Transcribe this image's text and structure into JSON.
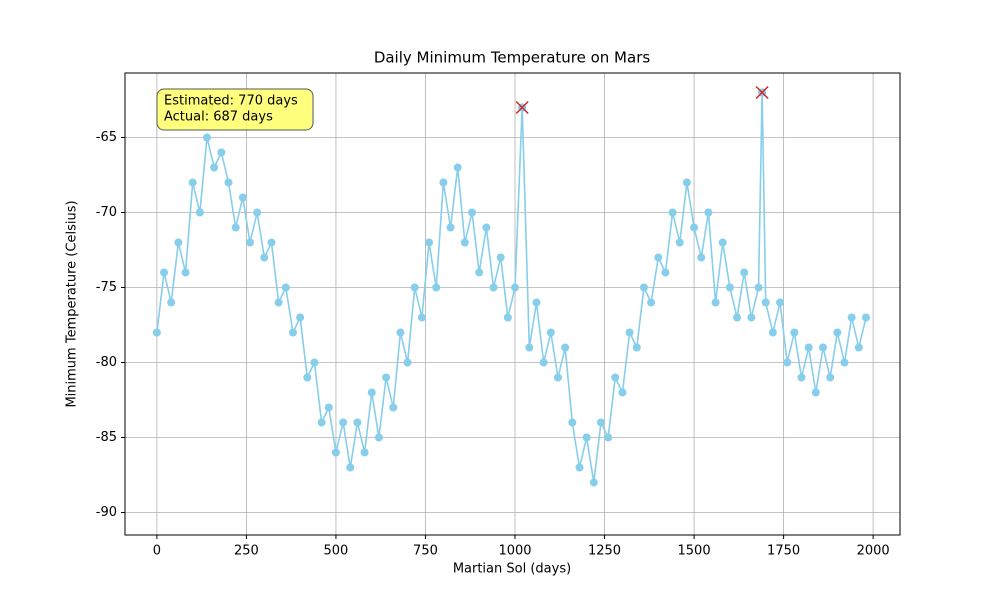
{
  "chart_data": {
    "type": "line",
    "title": "Daily Minimum Temperature on Mars",
    "x_label": "Martian Sol (days)",
    "y_label": "Minimum Temperature (Celsius)",
    "xlim": [
      -89,
      2075
    ],
    "ylim": [
      -91.5,
      -60.7
    ],
    "xticks": [
      0,
      250,
      500,
      750,
      1000,
      1250,
      1500,
      1750,
      2000
    ],
    "yticks": [
      -90,
      -85,
      -80,
      -75,
      -70,
      -65
    ],
    "grid": true,
    "series": [
      {
        "color": "#87ceeb",
        "marker": "o",
        "x": [
          0,
          20,
          40,
          60,
          80,
          100,
          120,
          140,
          160,
          180,
          200,
          220,
          240,
          260,
          280,
          300,
          320,
          340,
          360,
          380,
          400,
          420,
          440,
          460,
          480,
          500,
          520,
          540,
          560,
          580,
          600,
          620,
          640,
          660,
          680,
          700,
          720,
          740,
          760,
          780,
          800,
          820,
          840,
          860,
          880,
          900,
          920,
          940,
          960,
          980,
          1000,
          1020,
          1040,
          1060,
          1080,
          1100,
          1120,
          1140,
          1160,
          1180,
          1200,
          1220,
          1240,
          1260,
          1280,
          1300,
          1320,
          1340,
          1360,
          1380,
          1400,
          1420,
          1440,
          1460,
          1480,
          1500,
          1520,
          1540,
          1560,
          1580,
          1600,
          1620,
          1640,
          1660,
          1680,
          1690,
          1700,
          1720,
          1740,
          1760,
          1780,
          1800,
          1820,
          1840,
          1860,
          1880,
          1900,
          1920,
          1940,
          1960,
          1980
        ],
        "values": [
          -78,
          -74,
          -76,
          -72,
          -74,
          -68,
          -70,
          -65,
          -67,
          -66,
          -68,
          -71,
          -69,
          -72,
          -70,
          -73,
          -72,
          -76,
          -75,
          -78,
          -77,
          -81,
          -80,
          -84,
          -83,
          -86,
          -84,
          -87,
          -84,
          -86,
          -82,
          -85,
          -81,
          -83,
          -78,
          -80,
          -75,
          -77,
          -72,
          -75,
          -68,
          -71,
          -67,
          -72,
          -70,
          -74,
          -71,
          -75,
          -73,
          -77,
          -75,
          -63,
          -79,
          -76,
          -80,
          -78,
          -81,
          -79,
          -84,
          -87,
          -85,
          -88,
          -84,
          -85,
          -81,
          -82,
          -78,
          -79,
          -75,
          -76,
          -73,
          -74,
          -70,
          -72,
          -68,
          -71,
          -73,
          -70,
          -76,
          -72,
          -75,
          -77,
          -74,
          -77,
          -75,
          -62,
          -76,
          -78,
          -76,
          -80,
          -78,
          -81,
          -79,
          -82,
          -79,
          -81,
          -78,
          -80,
          -77,
          -79,
          -77
        ]
      },
      {
        "color": "#d62728",
        "marker": "x",
        "x": [
          1020,
          1690
        ],
        "values": [
          -63,
          -62
        ]
      },
      {
        "color": "#ff9f1c",
        "marker": "x",
        "x": [
          148
        ],
        "values": [
          -63
        ]
      }
    ],
    "annotation": {
      "lines": [
        "Estimated: 770 days",
        "Actual: 687 days"
      ]
    }
  }
}
